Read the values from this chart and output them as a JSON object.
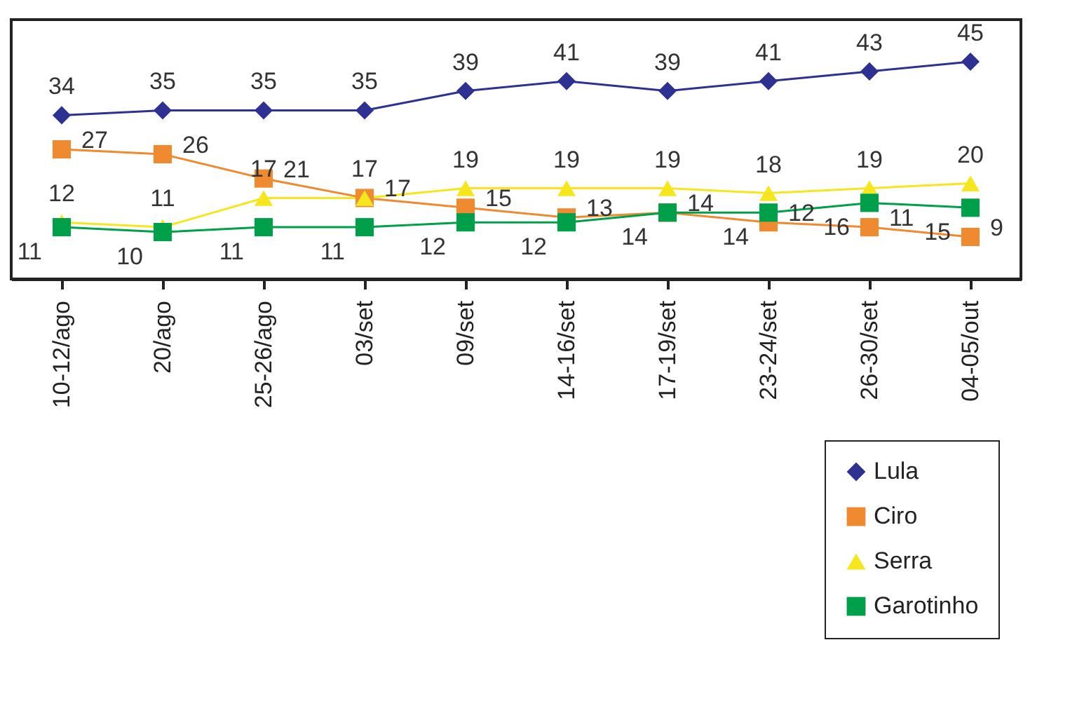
{
  "chart_data": {
    "type": "line",
    "categories": [
      "10-12/ago",
      "20/ago",
      "25-26/ago",
      "03/set",
      "09/set",
      "14-16/set",
      "17-19/set",
      "23-24/set",
      "26-30/set",
      "04-05/out"
    ],
    "series": [
      {
        "name": "Lula",
        "color": "#2e3192",
        "marker": "diamond",
        "values": [
          34,
          35,
          35,
          35,
          39,
          41,
          39,
          41,
          43,
          45
        ]
      },
      {
        "name": "Ciro",
        "color": "#f08a30",
        "marker": "square",
        "values": [
          27,
          26,
          21,
          17,
          15,
          13,
          14,
          12,
          11,
          9
        ]
      },
      {
        "name": "Serra",
        "color": "#f5e61e",
        "marker": "triangle",
        "values": [
          12,
          11,
          17,
          17,
          19,
          19,
          19,
          18,
          19,
          20
        ]
      },
      {
        "name": "Garotinho",
        "color": "#00a04a",
        "marker": "square",
        "values": [
          11,
          10,
          11,
          11,
          12,
          12,
          14,
          14,
          16,
          15
        ]
      }
    ],
    "data_labels": true,
    "legend": "bottom right",
    "grid": false,
    "tick_labels": "x",
    "line_style": "solid"
  }
}
